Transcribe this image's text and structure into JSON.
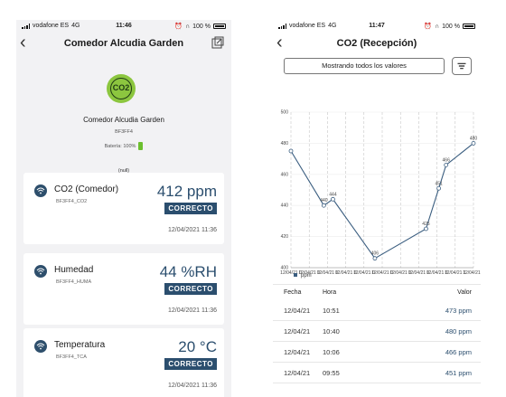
{
  "left": {
    "status": {
      "carrier": "vodafone ES",
      "network": "4G",
      "time": "11:46",
      "battery": "100 %"
    },
    "title": "Comedor Alcudia Garden",
    "device": {
      "badge": "CO2",
      "name": "Comedor Alcudia Garden",
      "id": "BF3FF4",
      "battery_label": "Batería: 100%",
      "null_label": "(null)"
    },
    "sensors": [
      {
        "name": "CO2 (Comedor)",
        "code": "BF3FF4_CO2",
        "value": "412 ppm",
        "status": "CORRECTO",
        "time": "12/04/2021 11:36"
      },
      {
        "name": "Humedad",
        "code": "BF3FF4_HUMA",
        "value": "44 %RH",
        "status": "CORRECTO",
        "time": "12/04/2021 11:36"
      },
      {
        "name": "Temperatura",
        "code": "BF3FF4_TCA",
        "value": "20 °C",
        "status": "CORRECTO",
        "time": "12/04/2021 11:36"
      }
    ]
  },
  "right": {
    "status": {
      "carrier": "vodafone ES",
      "network": "4G",
      "time": "11:47",
      "battery": "100 %"
    },
    "title": "CO2 (Recepción)",
    "filter_label": "Mostrando todos los valores",
    "table": {
      "headers": {
        "date": "Fecha",
        "time": "Hora",
        "value": "Valor"
      },
      "rows": [
        {
          "date": "12/04/21",
          "time": "10:51",
          "value": "473 ppm"
        },
        {
          "date": "12/04/21",
          "time": "10:40",
          "value": "480 ppm"
        },
        {
          "date": "12/04/21",
          "time": "10:06",
          "value": "466 ppm"
        },
        {
          "date": "12/04/21",
          "time": "09:55",
          "value": "451 ppm"
        }
      ]
    }
  },
  "colors": {
    "accent": "#2b4e6e",
    "co2_badge": "#8cc63f",
    "battery_ok": "#6cbf2e"
  },
  "chart_data": {
    "type": "line",
    "title": "",
    "ylim": [
      400,
      500
    ],
    "yticks": [
      400,
      420,
      440,
      460,
      480,
      500
    ],
    "x_tick_labels": [
      "12/04/21 0",
      "12/04/21 0",
      "12/04/21 0",
      "12/04/21 0",
      "12/04/21 0",
      "12/04/21 0",
      "12/04/21 0",
      "12/04/21 0",
      "12/04/21 0",
      "12/04/21 1",
      "12/04/21 1"
    ],
    "series": [
      {
        "name": "ppm",
        "values": [
          475,
          440,
          444,
          406,
          425,
          451,
          466,
          480
        ]
      }
    ],
    "point_labels": [
      "",
      "440",
      "444",
      "406",
      "425",
      "451",
      "466",
      "480"
    ],
    "grid": true,
    "legend": "bottom-left"
  }
}
